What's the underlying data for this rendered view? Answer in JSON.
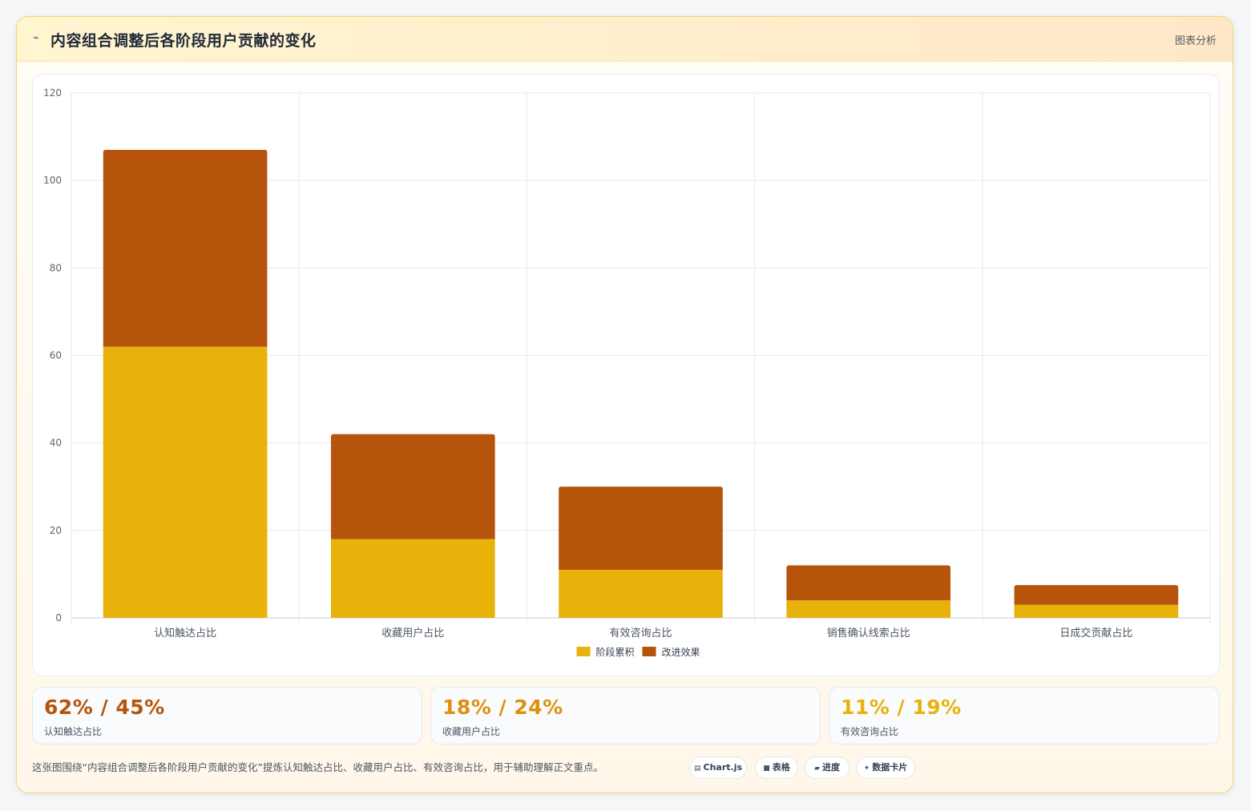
{
  "header": {
    "icon": "chart-line-icon",
    "icon_glyph": "⌁",
    "title": "内容组合调整后各阶段用户贡献的变化",
    "right_label": "图表分析"
  },
  "chart_data": {
    "type": "bar",
    "stacked": true,
    "categories": [
      "认知触达占比",
      "收藏用户占比",
      "有效咨询占比",
      "销售确认线索占比",
      "日成交贡献占比"
    ],
    "series": [
      {
        "name": "阶段累积",
        "color": "#e8b20b",
        "values": [
          62,
          18,
          11,
          4,
          3
        ]
      },
      {
        "name": "改进效果",
        "color": "#b5540a",
        "values": [
          45,
          24,
          19,
          8,
          4.5
        ]
      }
    ],
    "ylim": [
      0,
      120
    ],
    "yticks": [
      "0",
      "20",
      "40",
      "60",
      "80",
      "100",
      "120"
    ],
    "grid": true,
    "legend_position": "bottom"
  },
  "stats": [
    {
      "value": "62% / 45%",
      "label": "认知触达占比",
      "color": "#b5540a"
    },
    {
      "value": "18% / 24%",
      "label": "收藏用户占比",
      "color": "#e08f0c"
    },
    {
      "value": "11% / 19%",
      "label": "有效咨询占比",
      "color": "#e8b20b"
    }
  ],
  "footer": {
    "text": "这张图围绕“内容组合调整后各阶段用户贡献的变化”提炼认知触达占比、收藏用户占比、有效咨询占比，用于辅助理解正文重点。"
  },
  "pills": [
    {
      "icon": "▤",
      "label": "Chart.js"
    },
    {
      "icon": "■",
      "label": "表格"
    },
    {
      "icon": "▰",
      "label": "进度"
    },
    {
      "icon": "✦",
      "label": "数据卡片"
    }
  ]
}
